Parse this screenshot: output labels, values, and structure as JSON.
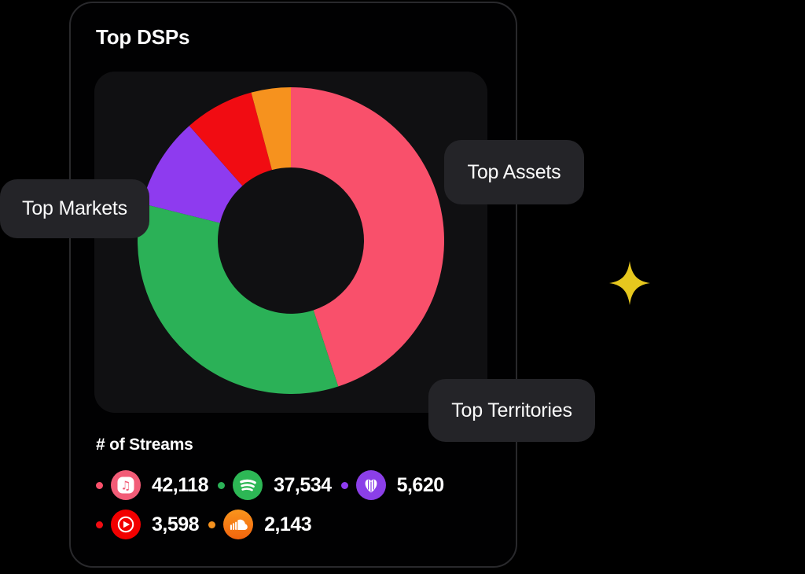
{
  "card": {
    "title": "Top DSPs"
  },
  "legend": {
    "title": "# of Streams",
    "items": [
      {
        "id": "apple-music",
        "label": "Apple Music",
        "display_value": "42,118",
        "value": 42118,
        "color": "#F9506B",
        "row": 1
      },
      {
        "id": "spotify",
        "label": "Spotify",
        "display_value": "37,534",
        "value": 37534,
        "color": "#2BB157",
        "row": 1
      },
      {
        "id": "deezer",
        "label": "Deezer",
        "display_value": "5,620",
        "value": 5620,
        "color": "#8E3BEF",
        "row": 1
      },
      {
        "id": "youtube-music",
        "label": "YouTube Music",
        "display_value": "3,598",
        "value": 3598,
        "color": "#F10C12",
        "row": 2
      },
      {
        "id": "soundcloud",
        "label": "SoundCloud",
        "display_value": "2,143",
        "value": 2143,
        "color": "#F6921E",
        "row": 2
      }
    ]
  },
  "overlays": {
    "top_markets": "Top Markets",
    "top_assets": "Top Assets",
    "top_territories": "Top Territories"
  },
  "chart_data": {
    "type": "pie",
    "variant": "donut",
    "title": "Top DSPs",
    "legend_title": "# of Streams",
    "legend_position": "bottom",
    "segments": [
      {
        "label": "Apple Music",
        "value": 42118,
        "color": "#F9506B",
        "start_deg": 0,
        "end_deg": 162
      },
      {
        "label": "Spotify",
        "value": 37534,
        "color": "#2BB157",
        "start_deg": 162,
        "end_deg": 284
      },
      {
        "label": "Deezer",
        "value": 5620,
        "color": "#8E3BEF",
        "start_deg": 284,
        "end_deg": 318.5
      },
      {
        "label": "YouTube Music",
        "value": 3598,
        "color": "#F10C12",
        "start_deg": 318.5,
        "end_deg": 345
      },
      {
        "label": "SoundCloud",
        "value": 2143,
        "color": "#F6921E",
        "start_deg": 345,
        "end_deg": 360
      }
    ]
  },
  "colors": {
    "sparkle": "#E6C71E",
    "page_bg": "#000000",
    "card_bg": "#010102",
    "chart_bg": "#101012",
    "chip_bg": "#242428",
    "card_border": "#29292C"
  }
}
